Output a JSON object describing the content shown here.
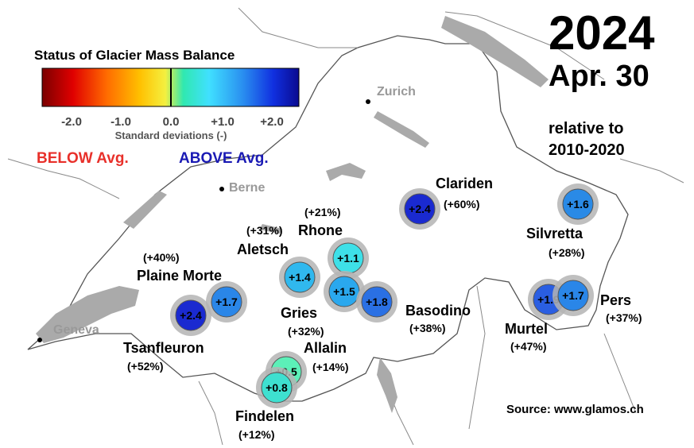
{
  "header": {
    "year": "2024",
    "date": "Apr. 30",
    "relative_line1": "relative to",
    "relative_line2": "2010-2020"
  },
  "legend": {
    "title": "Status of Glacier Mass Balance",
    "ticks": [
      "-2.0",
      "-1.0",
      "0.0",
      "+1.0",
      "+2.0"
    ],
    "axis_label": "Standard deviations (-)",
    "below_label": "BELOW Avg.",
    "above_label": "ABOVE Avg.",
    "below_color": "#e8302a",
    "above_color": "#1a1ab4",
    "colorscale": [
      "#7a0000",
      "#e00000",
      "#ff6a00",
      "#ffc000",
      "#f4f040",
      "#30e8b0",
      "#40e0ff",
      "#2a90f0",
      "#1030e0",
      "#0a0a90"
    ]
  },
  "cities": [
    {
      "name": "Zurich",
      "marker": "city-dot"
    },
    {
      "name": "Berne",
      "marker": "city-dot"
    },
    {
      "name": "Geneva",
      "marker": "city-dot"
    }
  ],
  "glaciers": [
    {
      "name": "Clariden",
      "value": "+2.4",
      "percent": "(+60%)",
      "color": "#1a2ad0"
    },
    {
      "name": "Silvretta",
      "value": "+1.6",
      "percent": "(+28%)",
      "color": "#2a8ae6"
    },
    {
      "name": "Rhone",
      "value": "+1.1",
      "percent": "(+21%)",
      "color": "#3ee0e8"
    },
    {
      "name": "Aletsch",
      "value": "+1.4",
      "percent": "(+31%)",
      "color": "#30b8ee"
    },
    {
      "name": "Gries",
      "value": "+1.5",
      "percent": "(+32%)",
      "color": "#2aa8ee"
    },
    {
      "name": "Basodino",
      "value": "+1.8",
      "percent": "(+38%)",
      "color": "#2a70e4"
    },
    {
      "name": "Plaine Morte",
      "value": "+1.7",
      "percent": "(+40%)",
      "color": "#2a86e8"
    },
    {
      "name": "Tsanfleuron",
      "value": "+2.4",
      "percent": "(+52%)",
      "color": "#1a2ad0"
    },
    {
      "name": "Allalin",
      "value": "+0.5",
      "percent": "(+14%)",
      "color": "#5cf0b8"
    },
    {
      "name": "Findelen",
      "value": "+0.8",
      "percent": "(+12%)",
      "color": "#3ee0d0"
    },
    {
      "name": "Murtel",
      "value": "+1.9",
      "percent": "(+47%)",
      "color": "#2a5ee2"
    },
    {
      "name": "Pers",
      "value": "+1.7",
      "percent": "(+37%)",
      "color": "#2a86e8"
    }
  ],
  "source": "Source: www.glamos.ch"
}
